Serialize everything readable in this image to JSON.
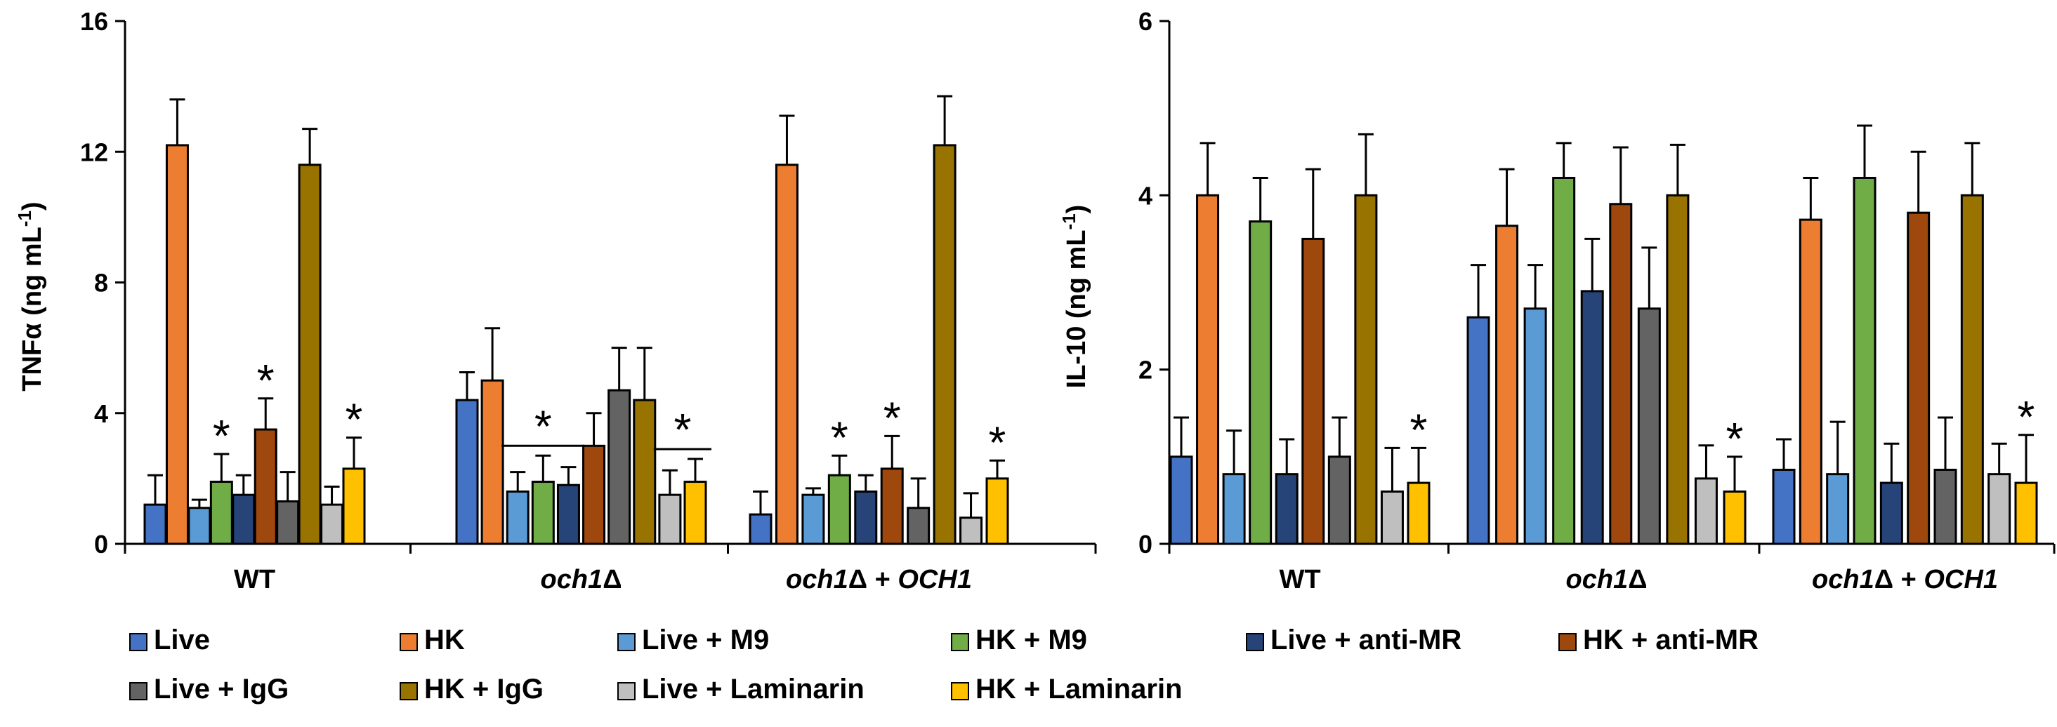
{
  "legend": [
    "Live",
    "HK",
    "Live + M9",
    "HK + M9",
    "Live + anti-MR",
    "HK + anti-MR",
    "Live + IgG",
    "HK + IgG",
    "Live + Laminarin",
    "HK + Laminarin"
  ],
  "colors": [
    "#4472C4",
    "#ED7D31",
    "#5B9BD5",
    "#70AD47",
    "#264478",
    "#9E480E",
    "#636363",
    "#997300",
    "#BFBFBF",
    "#FFC000"
  ],
  "chart_data": [
    {
      "type": "bar",
      "id": "tnf",
      "ylabel": "TNFα (ng mL-1)",
      "ylabel_parts": {
        "main": "TNFα (ng mL",
        "sup": "-1",
        "end": ")"
      },
      "ylim": [
        0,
        16
      ],
      "yticks": [
        "0",
        "4",
        "8",
        "12",
        "16"
      ],
      "groups": [
        {
          "name": "WT",
          "parts": [
            {
              "t": "WT",
              "i": false
            }
          ]
        },
        {
          "name": "och1Δ",
          "parts": [
            {
              "t": "och1",
              "i": true
            },
            {
              "t": "Δ",
              "i": false
            }
          ]
        },
        {
          "name": "och1Δ + OCH1",
          "parts": [
            {
              "t": "och1",
              "i": true
            },
            {
              "t": "Δ + ",
              "i": false
            },
            {
              "t": "OCH1",
              "i": true
            }
          ]
        }
      ],
      "series": [
        {
          "name": "Live",
          "values": [
            1.2,
            4.4,
            0.9
          ],
          "errors": [
            0.9,
            0.85,
            0.7
          ]
        },
        {
          "name": "HK",
          "values": [
            12.2,
            5.0,
            11.6
          ],
          "errors": [
            1.4,
            1.6,
            1.5
          ]
        },
        {
          "name": "Live + M9",
          "values": [
            1.1,
            1.6,
            1.5
          ],
          "errors": [
            0.25,
            0.6,
            0.2
          ]
        },
        {
          "name": "HK + M9",
          "values": [
            1.9,
            1.9,
            2.1
          ],
          "errors": [
            0.85,
            0.8,
            0.6
          ]
        },
        {
          "name": "Live + anti-MR",
          "values": [
            1.5,
            1.8,
            1.6
          ],
          "errors": [
            0.6,
            0.55,
            0.5
          ]
        },
        {
          "name": "HK + anti-MR",
          "values": [
            3.5,
            3.0,
            2.3
          ],
          "errors": [
            0.95,
            1.0,
            1.0
          ]
        },
        {
          "name": "Live + IgG",
          "values": [
            1.3,
            4.7,
            1.1
          ],
          "errors": [
            0.9,
            1.3,
            0.9
          ]
        },
        {
          "name": "HK + IgG",
          "values": [
            11.6,
            4.4,
            12.2
          ],
          "errors": [
            1.1,
            1.6,
            1.5
          ]
        },
        {
          "name": "Live + Laminarin",
          "values": [
            1.2,
            1.5,
            0.8
          ],
          "errors": [
            0.55,
            0.75,
            0.75
          ]
        },
        {
          "name": "HK + Laminarin",
          "values": [
            2.3,
            1.9,
            2.0
          ],
          "errors": [
            0.95,
            0.7,
            0.55
          ]
        }
      ],
      "annotations": [
        {
          "text": "*",
          "group": 0,
          "series": 3
        },
        {
          "text": "*",
          "group": 0,
          "series": 5
        },
        {
          "text": "*",
          "group": 0,
          "series": 9
        },
        {
          "text": "*",
          "group": 1,
          "series_span": [
            2,
            4
          ],
          "bracket": true
        },
        {
          "text": "*",
          "group": 1,
          "series_span": [
            8,
            9
          ],
          "bracket": true
        },
        {
          "text": "*",
          "group": 2,
          "series": 3
        },
        {
          "text": "*",
          "group": 2,
          "series": 5
        },
        {
          "text": "*",
          "group": 2,
          "series": 9
        }
      ]
    },
    {
      "type": "bar",
      "id": "il10",
      "ylabel": "IL-10 (ng mL-1)",
      "ylabel_parts": {
        "main": "IL-10 (ng mL",
        "sup": "-1",
        "end": ")"
      },
      "ylim": [
        0,
        6
      ],
      "yticks": [
        "0",
        "2",
        "4",
        "6"
      ],
      "groups": [
        {
          "name": "WT",
          "parts": [
            {
              "t": "WT",
              "i": false
            }
          ]
        },
        {
          "name": "och1Δ",
          "parts": [
            {
              "t": "och1",
              "i": true
            },
            {
              "t": "Δ",
              "i": false
            }
          ]
        },
        {
          "name": "och1Δ + OCH1",
          "parts": [
            {
              "t": "och1",
              "i": true
            },
            {
              "t": "Δ + ",
              "i": false
            },
            {
              "t": "OCH1",
              "i": true
            }
          ]
        }
      ],
      "series": [
        {
          "name": "Live",
          "values": [
            1.0,
            2.6,
            0.85
          ],
          "errors": [
            0.45,
            0.6,
            0.35
          ]
        },
        {
          "name": "HK",
          "values": [
            4.0,
            3.65,
            3.72
          ],
          "errors": [
            0.6,
            0.65,
            0.48
          ]
        },
        {
          "name": "Live + M9",
          "values": [
            0.8,
            2.7,
            0.8
          ],
          "errors": [
            0.5,
            0.5,
            0.6
          ]
        },
        {
          "name": "HK + M9",
          "values": [
            3.7,
            4.2,
            4.2
          ],
          "errors": [
            0.5,
            0.4,
            0.6
          ]
        },
        {
          "name": "Live + anti-MR",
          "values": [
            0.8,
            2.9,
            0.7
          ],
          "errors": [
            0.4,
            0.6,
            0.45
          ]
        },
        {
          "name": "HK + anti-MR",
          "values": [
            3.5,
            3.9,
            3.8
          ],
          "errors": [
            0.8,
            0.65,
            0.7
          ]
        },
        {
          "name": "Live + IgG",
          "values": [
            1.0,
            2.7,
            0.85
          ],
          "errors": [
            0.45,
            0.7,
            0.6
          ]
        },
        {
          "name": "HK + IgG",
          "values": [
            4.0,
            4.0,
            4.0
          ],
          "errors": [
            0.7,
            0.58,
            0.6
          ]
        },
        {
          "name": "Live + Laminarin",
          "values": [
            0.6,
            0.75,
            0.8
          ],
          "errors": [
            0.5,
            0.38,
            0.35
          ]
        },
        {
          "name": "HK + Laminarin",
          "values": [
            0.7,
            0.6,
            0.7
          ],
          "errors": [
            0.4,
            0.4,
            0.55
          ]
        }
      ],
      "annotations": [
        {
          "text": "*",
          "group": 0,
          "series": 9
        },
        {
          "text": "*",
          "group": 1,
          "series": 9
        },
        {
          "text": "*",
          "group": 2,
          "series": 9
        }
      ]
    }
  ]
}
